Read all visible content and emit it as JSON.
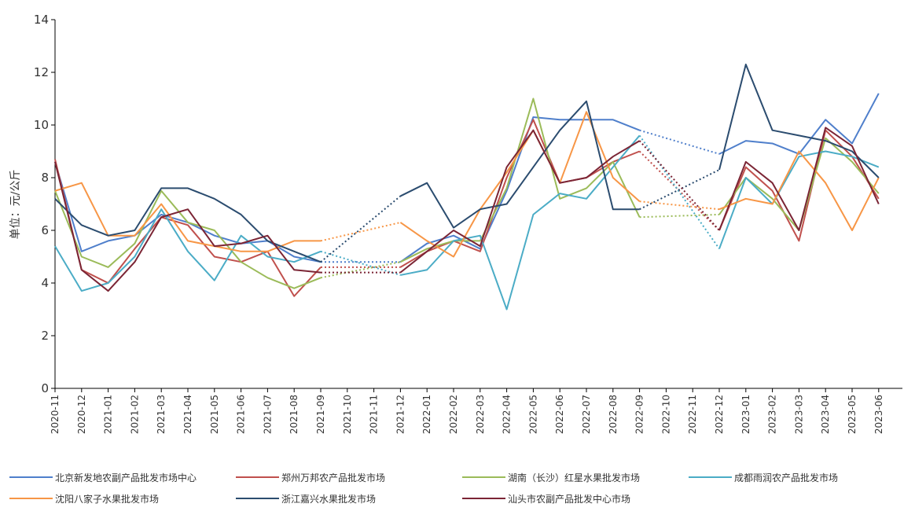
{
  "chart_data": {
    "type": "line",
    "y_label": "单位：元/公斤",
    "categories": [
      "2020-11",
      "2020-12",
      "2021-01",
      "2021-02",
      "2021-03",
      "2021-04",
      "2021-05",
      "2021-06",
      "2021-07",
      "2021-08",
      "2021-09",
      "2021-10",
      "2021-11",
      "2021-12",
      "2022-01",
      "2022-02",
      "2022-03",
      "2022-04",
      "2022-05",
      "2022-06",
      "2022-07",
      "2022-08",
      "2022-09",
      "2022-10",
      "2022-11",
      "2022-12",
      "2023-01",
      "2023-02",
      "2023-03",
      "2023-04",
      "2023-05",
      "2023-06"
    ],
    "ylim": [
      0,
      14
    ],
    "yticks": [
      0,
      2,
      4,
      6,
      8,
      10,
      12,
      14
    ],
    "grid": false,
    "series": [
      {
        "name": "北京新发地农副产品批发市场中心",
        "color": "#4f7fcb",
        "values": [
          8.6,
          5.2,
          5.6,
          5.8,
          6.6,
          6.3,
          5.8,
          5.5,
          5.6,
          5.0,
          4.8,
          null,
          null,
          4.8,
          5.5,
          5.8,
          5.3,
          7.5,
          10.3,
          10.2,
          10.2,
          10.2,
          9.8,
          null,
          null,
          8.9,
          9.4,
          9.3,
          8.9,
          10.2,
          9.3,
          11.2
        ]
      },
      {
        "name": "郑州万邦农产品批发市场",
        "color": "#c0504d",
        "values": [
          8.7,
          4.5,
          4.0,
          5.3,
          6.5,
          6.2,
          5.0,
          4.8,
          5.2,
          3.5,
          4.6,
          null,
          null,
          4.6,
          5.2,
          5.6,
          5.2,
          8.0,
          10.2,
          7.8,
          8.0,
          8.6,
          9.0,
          null,
          null,
          6.0,
          8.4,
          7.5,
          5.6,
          9.8,
          8.8,
          7.2
        ]
      },
      {
        "name": "湖南（长沙）红星水果批发市场",
        "color": "#9bbb59",
        "values": [
          7.5,
          5.0,
          4.6,
          5.5,
          7.5,
          6.3,
          6.0,
          4.8,
          4.2,
          3.8,
          4.2,
          null,
          null,
          4.8,
          5.3,
          5.6,
          5.6,
          7.6,
          11.0,
          7.2,
          7.6,
          8.6,
          6.5,
          null,
          null,
          6.6,
          8.0,
          7.2,
          6.0,
          9.5,
          8.6,
          7.4
        ]
      },
      {
        "name": "成都雨润农产品批发市场",
        "color": "#4bacc6",
        "values": [
          5.4,
          3.7,
          4.0,
          5.0,
          6.8,
          5.2,
          4.1,
          5.8,
          5.0,
          4.8,
          5.2,
          null,
          null,
          4.3,
          4.5,
          5.6,
          5.8,
          3.0,
          6.6,
          7.4,
          7.2,
          8.4,
          9.6,
          null,
          null,
          5.3,
          8.0,
          7.0,
          8.8,
          9.0,
          8.8,
          8.4
        ]
      },
      {
        "name": "沈阳八家子水果批发市场",
        "color": "#f79646",
        "values": [
          7.5,
          7.8,
          5.8,
          5.8,
          7.0,
          5.6,
          5.4,
          5.2,
          5.2,
          5.6,
          5.6,
          null,
          null,
          6.3,
          5.6,
          5.0,
          6.8,
          8.2,
          9.8,
          7.8,
          10.5,
          8.0,
          7.1,
          null,
          null,
          6.8,
          7.2,
          7.0,
          9.0,
          7.8,
          6.0,
          8.0
        ]
      },
      {
        "name": "浙江嘉兴水果批发市场",
        "color": "#2b4c6f",
        "values": [
          7.2,
          6.2,
          5.8,
          6.0,
          7.6,
          7.6,
          7.2,
          6.6,
          5.6,
          5.2,
          4.8,
          null,
          null,
          7.3,
          7.8,
          6.1,
          6.8,
          7.0,
          8.4,
          9.8,
          10.9,
          6.8,
          6.8,
          null,
          null,
          8.3,
          12.3,
          9.8,
          9.6,
          9.4,
          9.0,
          8.0
        ]
      },
      {
        "name": "汕头市农副产品批发中心市场",
        "color": "#7b2535",
        "values": [
          8.6,
          4.5,
          3.7,
          4.8,
          6.5,
          6.8,
          5.4,
          5.5,
          5.8,
          4.5,
          4.4,
          null,
          null,
          4.4,
          5.2,
          6.0,
          5.4,
          8.4,
          9.8,
          7.8,
          8.0,
          8.8,
          9.4,
          null,
          null,
          6.0,
          8.6,
          7.8,
          6.0,
          9.9,
          9.2,
          7.0
        ]
      }
    ]
  }
}
